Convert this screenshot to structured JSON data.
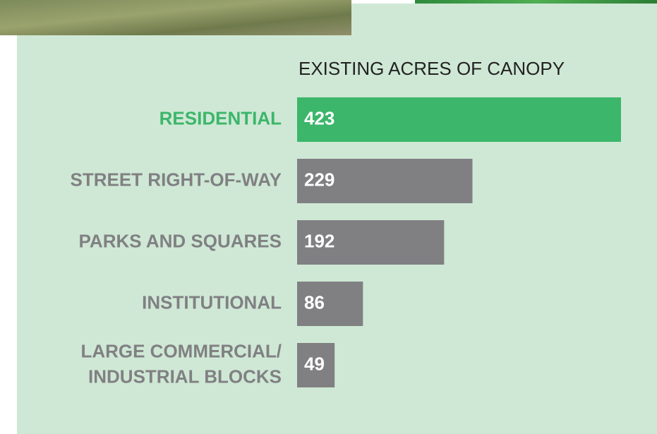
{
  "chart_data": {
    "type": "bar",
    "orientation": "horizontal",
    "title": "EXISTING ACRES OF CANOPY",
    "categories": [
      "RESIDENTIAL",
      "STREET RIGHT-OF-WAY",
      "PARKS AND SQUARES",
      "INSTITUTIONAL",
      "LARGE COMMERCIAL/\nINDUSTRIAL BLOCKS"
    ],
    "values": [
      423,
      229,
      192,
      86,
      49
    ],
    "colors": [
      "#3cb66a",
      "#808083",
      "#808083",
      "#808083",
      "#808083"
    ]
  }
}
